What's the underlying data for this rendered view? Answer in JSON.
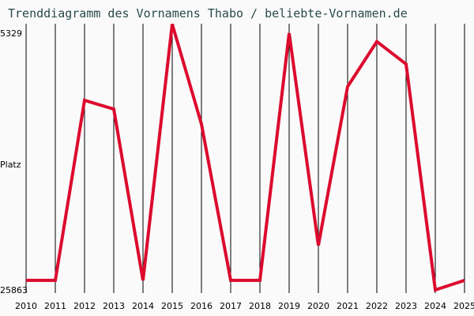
{
  "chart_data": {
    "type": "line",
    "title": "Trenddiagramm des Vornamens Thabo / beliebte-Vornamen.de",
    "xlabel": "",
    "ylabel": "Platz",
    "y_inverted": true,
    "ylim": [
      25863,
      5329
    ],
    "yticks": [
      "5329",
      "25863"
    ],
    "categories": [
      "2010",
      "2011",
      "2012",
      "2013",
      "2014",
      "2015",
      "2016",
      "2017",
      "2018",
      "2019",
      "2020",
      "2021",
      "2022",
      "2023",
      "2024",
      "2025"
    ],
    "series": [
      {
        "name": "Thabo",
        "color": "#dc0a2d",
        "values": [
          25100,
          25100,
          10700,
          11400,
          25100,
          4600,
          12600,
          25100,
          25100,
          5329,
          22300,
          9600,
          6000,
          7800,
          25863,
          25100
        ]
      }
    ],
    "grid": {
      "vertical": true,
      "horizontal": false
    }
  }
}
